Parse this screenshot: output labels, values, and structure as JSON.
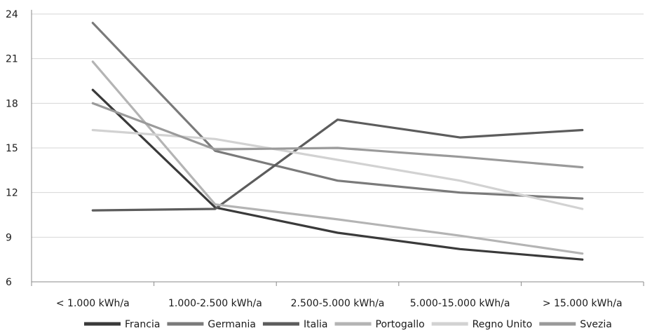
{
  "chart_data": {
    "type": "line",
    "categories": [
      "< 1.000 kWh/a",
      "1.000-2.500 kWh/a",
      "2.500-5.000 kWh/a",
      "5.000-15.000 kWh/a",
      "> 15.000 kWh/a"
    ],
    "ylim": [
      6,
      24
    ],
    "yticks": [
      6,
      9,
      12,
      15,
      18,
      21,
      24
    ],
    "grid": true,
    "legend_position": "bottom",
    "series": [
      {
        "name": "Francia",
        "color": "#3a3a3a",
        "values": [
          18.9,
          11.0,
          9.3,
          8.2,
          7.5
        ]
      },
      {
        "name": "Germania",
        "color": "#7a7a7a",
        "values": [
          23.4,
          14.8,
          12.8,
          12.0,
          11.6
        ]
      },
      {
        "name": "Italia",
        "color": "#5c5c5c",
        "values": [
          10.8,
          10.9,
          16.9,
          15.7,
          16.2
        ]
      },
      {
        "name": "Portogallo",
        "color": "#b4b4b4",
        "values": [
          20.8,
          11.2,
          10.2,
          9.1,
          7.9
        ]
      },
      {
        "name": "Regno Unito",
        "color": "#d2d2d2",
        "values": [
          16.2,
          15.6,
          14.2,
          12.8,
          10.9
        ]
      },
      {
        "name": "Svezia",
        "color": "#9a9a9a",
        "values": [
          18.0,
          14.9,
          15.0,
          14.4,
          13.7
        ]
      }
    ]
  }
}
